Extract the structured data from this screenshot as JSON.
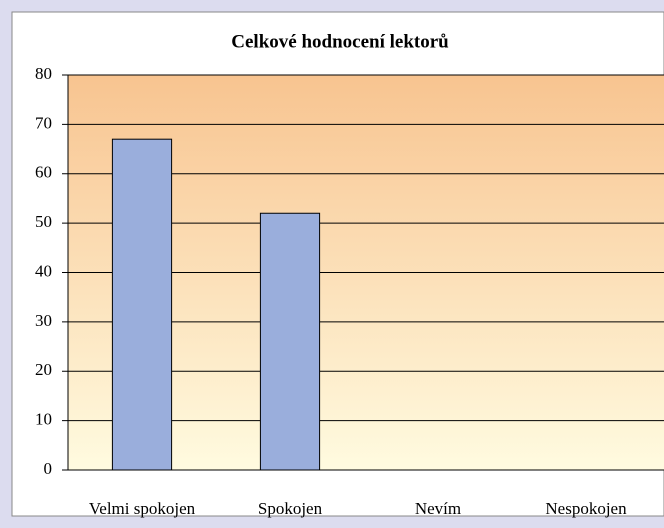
{
  "chart_data": {
    "type": "bar",
    "title": "Celkové hodnocení lektorů",
    "categories": [
      "Velmi spokojen",
      "Spokojen",
      "Nevím",
      "Nespokojen"
    ],
    "values": [
      67,
      52,
      0,
      0
    ],
    "color": "#9aaedc",
    "ylim": [
      0,
      80
    ],
    "yticks": [
      0,
      10,
      20,
      30,
      40,
      50,
      60,
      70,
      80
    ],
    "grid": true
  }
}
